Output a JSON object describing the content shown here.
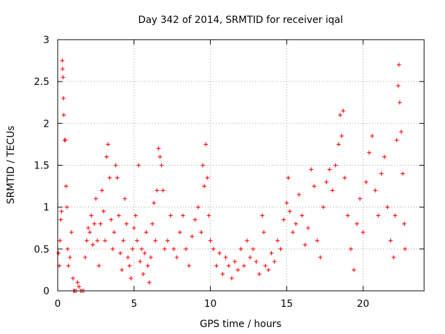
{
  "chart_data": {
    "type": "scatter",
    "title": "Day 342 of 2014, SRMTID for receiver iqal",
    "xlabel": "GPS time / hours",
    "ylabel": "SRMTID / TECUs",
    "xlim": [
      0,
      24
    ],
    "ylim": [
      0,
      3
    ],
    "xticks": [
      0,
      5,
      10,
      15,
      20
    ],
    "yticks": [
      0,
      0.5,
      1,
      1.5,
      2,
      2.5,
      3
    ],
    "xtick_labels": [
      "0",
      "5",
      "10",
      "15",
      "20"
    ],
    "ytick_labels": [
      "0",
      "0.5",
      "1",
      "1.5",
      "2",
      "2.5",
      "3"
    ],
    "grid": true,
    "marker": "+",
    "color": "#ff0000",
    "series": [
      {
        "name": "SRMTID",
        "points": [
          [
            0.05,
            0.45
          ],
          [
            0.1,
            0.3
          ],
          [
            0.15,
            0.6
          ],
          [
            0.2,
            0.85
          ],
          [
            0.25,
            0.95
          ],
          [
            0.3,
            2.75
          ],
          [
            0.32,
            2.65
          ],
          [
            0.35,
            2.55
          ],
          [
            0.38,
            2.3
          ],
          [
            0.4,
            2.1
          ],
          [
            0.45,
            1.8
          ],
          [
            0.5,
            1.8
          ],
          [
            0.55,
            1.25
          ],
          [
            0.6,
            1.0
          ],
          [
            0.65,
            0.5
          ],
          [
            0.7,
            0.3
          ],
          [
            0.8,
            0.4
          ],
          [
            0.9,
            0.7
          ],
          [
            1.0,
            0.15
          ],
          [
            1.05,
            0.0
          ],
          [
            1.1,
            0.0
          ],
          [
            1.2,
            0.0
          ],
          [
            1.3,
            0.1
          ],
          [
            1.4,
            0.05
          ],
          [
            1.5,
            0.0
          ],
          [
            1.6,
            0.0
          ],
          [
            1.7,
            0.0
          ],
          [
            1.8,
            0.4
          ],
          [
            1.9,
            0.6
          ],
          [
            2.0,
            0.75
          ],
          [
            2.1,
            0.7
          ],
          [
            2.2,
            0.9
          ],
          [
            2.3,
            0.55
          ],
          [
            2.4,
            0.8
          ],
          [
            2.5,
            1.1
          ],
          [
            2.6,
            0.6
          ],
          [
            2.7,
            0.3
          ],
          [
            2.8,
            0.8
          ],
          [
            2.9,
            1.2
          ],
          [
            3.0,
            0.95
          ],
          [
            3.1,
            0.6
          ],
          [
            3.2,
            1.6
          ],
          [
            3.3,
            1.75
          ],
          [
            3.4,
            1.35
          ],
          [
            3.5,
            0.85
          ],
          [
            3.6,
            0.5
          ],
          [
            3.7,
            0.7
          ],
          [
            3.8,
            1.5
          ],
          [
            3.9,
            1.35
          ],
          [
            4.0,
            0.9
          ],
          [
            4.1,
            0.45
          ],
          [
            4.2,
            0.25
          ],
          [
            4.3,
            0.6
          ],
          [
            4.4,
            1.1
          ],
          [
            4.5,
            0.8
          ],
          [
            4.6,
            0.4
          ],
          [
            4.7,
            0.3
          ],
          [
            4.8,
            0.15
          ],
          [
            4.9,
            0.5
          ],
          [
            5.0,
            0.75
          ],
          [
            5.1,
            0.9
          ],
          [
            5.2,
            0.6
          ],
          [
            5.3,
            1.5
          ],
          [
            5.4,
            0.35
          ],
          [
            5.5,
            0.5
          ],
          [
            5.6,
            0.2
          ],
          [
            5.7,
            0.45
          ],
          [
            5.8,
            0.7
          ],
          [
            5.9,
            0.3
          ],
          [
            6.0,
            0.1
          ],
          [
            6.1,
            0.4
          ],
          [
            6.2,
            0.8
          ],
          [
            6.3,
            1.05
          ],
          [
            6.4,
            0.6
          ],
          [
            6.5,
            1.2
          ],
          [
            6.6,
            1.7
          ],
          [
            6.7,
            1.6
          ],
          [
            6.8,
            1.5
          ],
          [
            6.9,
            1.2
          ],
          [
            7.0,
            0.5
          ],
          [
            7.2,
            0.6
          ],
          [
            7.4,
            0.9
          ],
          [
            7.6,
            0.5
          ],
          [
            7.8,
            0.4
          ],
          [
            8.0,
            0.7
          ],
          [
            8.2,
            0.9
          ],
          [
            8.4,
            0.5
          ],
          [
            8.6,
            0.3
          ],
          [
            8.8,
            0.65
          ],
          [
            9.0,
            0.85
          ],
          [
            9.2,
            1.0
          ],
          [
            9.4,
            0.7
          ],
          [
            9.5,
            1.5
          ],
          [
            9.6,
            1.25
          ],
          [
            9.7,
            1.75
          ],
          [
            9.8,
            1.35
          ],
          [
            9.9,
            0.9
          ],
          [
            10.0,
            0.6
          ],
          [
            10.2,
            0.5
          ],
          [
            10.4,
            0.3
          ],
          [
            10.6,
            0.45
          ],
          [
            10.8,
            0.2
          ],
          [
            11.0,
            0.4
          ],
          [
            11.2,
            0.3
          ],
          [
            11.4,
            0.15
          ],
          [
            11.6,
            0.35
          ],
          [
            11.8,
            0.25
          ],
          [
            12.0,
            0.5
          ],
          [
            12.2,
            0.3
          ],
          [
            12.4,
            0.6
          ],
          [
            12.6,
            0.4
          ],
          [
            12.8,
            0.5
          ],
          [
            13.0,
            0.35
          ],
          [
            13.2,
            0.2
          ],
          [
            13.4,
            0.9
          ],
          [
            13.5,
            0.7
          ],
          [
            13.6,
            0.3
          ],
          [
            13.8,
            0.25
          ],
          [
            14.0,
            0.45
          ],
          [
            14.2,
            0.35
          ],
          [
            14.4,
            0.6
          ],
          [
            14.6,
            0.5
          ],
          [
            14.8,
            0.85
          ],
          [
            15.0,
            1.05
          ],
          [
            15.1,
            1.35
          ],
          [
            15.2,
            0.95
          ],
          [
            15.4,
            0.7
          ],
          [
            15.6,
            0.8
          ],
          [
            15.8,
            1.15
          ],
          [
            16.0,
            0.9
          ],
          [
            16.2,
            0.55
          ],
          [
            16.4,
            0.75
          ],
          [
            16.6,
            1.45
          ],
          [
            16.8,
            1.25
          ],
          [
            17.0,
            0.6
          ],
          [
            17.2,
            0.4
          ],
          [
            17.4,
            1.0
          ],
          [
            17.6,
            1.3
          ],
          [
            17.8,
            1.45
          ],
          [
            18.0,
            1.2
          ],
          [
            18.2,
            1.5
          ],
          [
            18.4,
            1.75
          ],
          [
            18.5,
            2.1
          ],
          [
            18.6,
            1.85
          ],
          [
            18.7,
            2.15
          ],
          [
            18.8,
            1.35
          ],
          [
            19.0,
            0.9
          ],
          [
            19.2,
            0.5
          ],
          [
            19.4,
            0.25
          ],
          [
            19.6,
            0.8
          ],
          [
            19.8,
            1.1
          ],
          [
            20.0,
            0.7
          ],
          [
            20.2,
            1.3
          ],
          [
            20.4,
            1.65
          ],
          [
            20.6,
            1.85
          ],
          [
            20.8,
            1.2
          ],
          [
            21.0,
            0.9
          ],
          [
            21.2,
            1.4
          ],
          [
            21.4,
            1.6
          ],
          [
            21.6,
            1.0
          ],
          [
            21.8,
            0.6
          ],
          [
            22.0,
            0.4
          ],
          [
            22.1,
            0.9
          ],
          [
            22.2,
            1.8
          ],
          [
            22.3,
            2.45
          ],
          [
            22.35,
            2.7
          ],
          [
            22.4,
            2.25
          ],
          [
            22.5,
            1.9
          ],
          [
            22.6,
            1.4
          ],
          [
            22.7,
            0.8
          ],
          [
            22.75,
            0.5
          ]
        ]
      }
    ]
  }
}
